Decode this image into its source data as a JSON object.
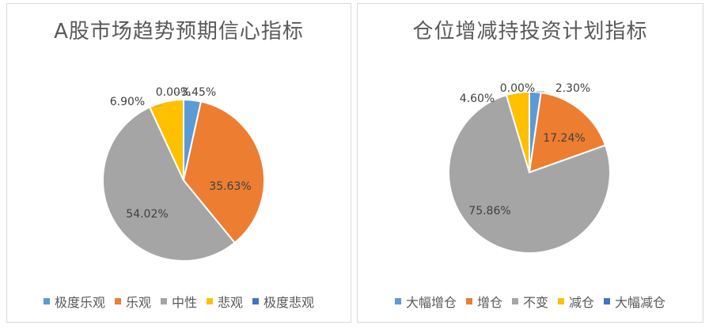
{
  "chart_data": [
    {
      "type": "pie",
      "title": "A股市场趋势预期信心指标",
      "categories": [
        "极度乐观",
        "乐观",
        "中性",
        "悲观",
        "极度悲观"
      ],
      "values": [
        3.45,
        35.63,
        54.02,
        6.9,
        0.0
      ],
      "labels": [
        "3.45%",
        "35.63%",
        "54.02%",
        "6.90%",
        "0.00%"
      ],
      "colors": [
        "#5B9BD5",
        "#ED7D31",
        "#A5A5A5",
        "#FFC000",
        "#4472C4"
      ],
      "legend_position": "bottom"
    },
    {
      "type": "pie",
      "title": "仓位增减持投资计划指标",
      "categories": [
        "大幅增仓",
        "增仓",
        "不变",
        "减仓",
        "大幅减仓"
      ],
      "values": [
        2.3,
        17.24,
        75.86,
        4.6,
        0.0
      ],
      "labels": [
        "2.30%",
        "17.24%",
        "75.86%",
        "4.60%",
        "0.00%"
      ],
      "colors": [
        "#5B9BD5",
        "#ED7D31",
        "#A5A5A5",
        "#FFC000",
        "#4472C4"
      ],
      "legend_position": "bottom"
    }
  ]
}
